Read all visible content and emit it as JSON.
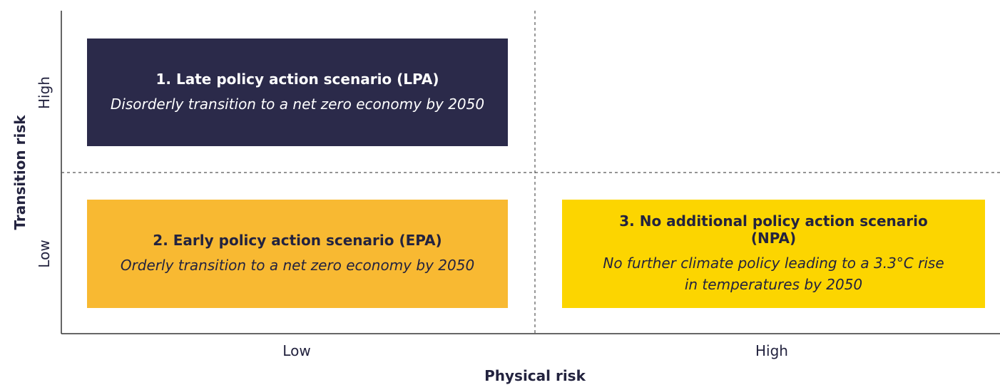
{
  "y_axis": {
    "title": "Transition risk",
    "labels": [
      "High",
      "Low"
    ]
  },
  "x_axis": {
    "title": "Physical risk",
    "labels": [
      "Low",
      "High"
    ]
  },
  "scenarios": [
    {
      "title": "1. Late policy action scenario (LPA)",
      "description": "Disorderly transition to a net zero economy by 2050"
    },
    {
      "title": "2. Early policy action scenario (EPA)",
      "description": "Orderly transition to a net zero economy by 2050"
    },
    {
      "title": "3. No additional policy action scenario (NPA)",
      "description": "No further climate policy leading to a 3.3°C rise in temperatures by 2050"
    }
  ]
}
